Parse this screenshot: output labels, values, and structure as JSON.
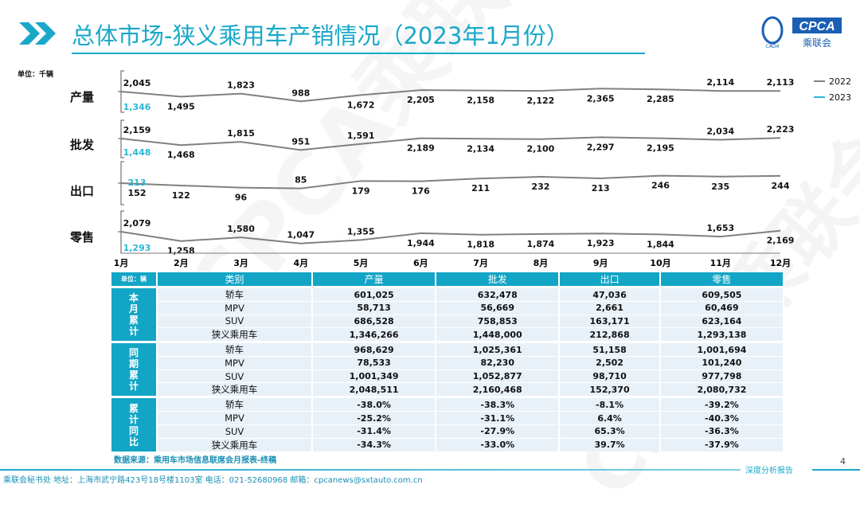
{
  "header": {
    "title": "总体市场-狭义乘用车产销情况（2023年1月份）",
    "logo_text": "CPCA",
    "logo_sub": "乘联会",
    "logo_small": "CADA"
  },
  "watermark": "CPCA乘联会",
  "chart": {
    "unit": "单位：千辆"
  },
  "chart_data": {
    "type": "line",
    "categories": [
      "1月",
      "2月",
      "3月",
      "4月",
      "5月",
      "6月",
      "7月",
      "8月",
      "9月",
      "10月",
      "11月",
      "12月"
    ],
    "legend": [
      "2022",
      "2023"
    ],
    "legend_position": "top-right",
    "colors": {
      "2022": "#808080",
      "2023": "#2bb5d6"
    },
    "panels": [
      {
        "label": "产量",
        "series": [
          {
            "name": "2022",
            "values": [
              2045,
              1495,
              1823,
              988,
              1672,
              2205,
              2158,
              2122,
              2365,
              2285,
              2114,
              2113
            ]
          },
          {
            "name": "2023",
            "values": [
              1346
            ]
          }
        ]
      },
      {
        "label": "批发",
        "series": [
          {
            "name": "2022",
            "values": [
              2159,
              1468,
              1815,
              951,
              1591,
              2189,
              2134,
              2100,
              2297,
              2195,
              2034,
              2223
            ]
          },
          {
            "name": "2023",
            "values": [
              1448
            ]
          }
        ]
      },
      {
        "label": "出口",
        "series": [
          {
            "name": "2022",
            "values": [
              152,
              122,
              96,
              85,
              179,
              176,
              211,
              232,
              213,
              246,
              235,
              244
            ]
          },
          {
            "name": "2023",
            "values": [
              213
            ]
          }
        ]
      },
      {
        "label": "零售",
        "series": [
          {
            "name": "2022",
            "values": [
              2079,
              1258,
              1580,
              1047,
              1355,
              1944,
              1818,
              1874,
              1923,
              1844,
              1653,
              2169
            ]
          },
          {
            "name": "2023",
            "values": [
              1293
            ]
          }
        ]
      }
    ]
  },
  "table": {
    "unit": "单位：辆",
    "headers": [
      "类别",
      "产量",
      "批发",
      "出口",
      "零售"
    ],
    "groups": [
      {
        "name": "本月累计",
        "rows": [
          [
            "轿车",
            "601,025",
            "632,478",
            "47,036",
            "609,505"
          ],
          [
            "MPV",
            "58,713",
            "56,669",
            "2,661",
            "60,469"
          ],
          [
            "SUV",
            "686,528",
            "758,853",
            "163,171",
            "623,164"
          ],
          [
            "狭义乘用车",
            "1,346,266",
            "1,448,000",
            "212,868",
            "1,293,138"
          ]
        ]
      },
      {
        "name": "同期累计",
        "rows": [
          [
            "轿车",
            "968,629",
            "1,025,361",
            "51,158",
            "1,001,694"
          ],
          [
            "MPV",
            "78,533",
            "82,230",
            "2,502",
            "101,240"
          ],
          [
            "SUV",
            "1,001,349",
            "1,052,877",
            "98,710",
            "977,798"
          ],
          [
            "狭义乘用车",
            "2,048,511",
            "2,160,468",
            "152,370",
            "2,080,732"
          ]
        ]
      },
      {
        "name": "累计同比",
        "rows": [
          [
            "轿车",
            "-38.0%",
            "-38.3%",
            "-8.1%",
            "-39.2%"
          ],
          [
            "MPV",
            "-25.2%",
            "-31.1%",
            "6.4%",
            "-40.3%"
          ],
          [
            "SUV",
            "-31.4%",
            "-27.9%",
            "65.3%",
            "-36.3%"
          ],
          [
            "狭义乘用车",
            "-34.3%",
            "-33.0%",
            "39.7%",
            "-37.9%"
          ]
        ]
      }
    ]
  },
  "footer": {
    "source": "数据来源：乘用车市场信息联席会月报表-终稿",
    "tag": "深度分析报告",
    "page": "4",
    "address": "乘联会秘书处   地址：上海市武宁路423号18号楼1103室  电话：021-52680968   邮箱：cpcanews@sxtauto.com.cn"
  }
}
